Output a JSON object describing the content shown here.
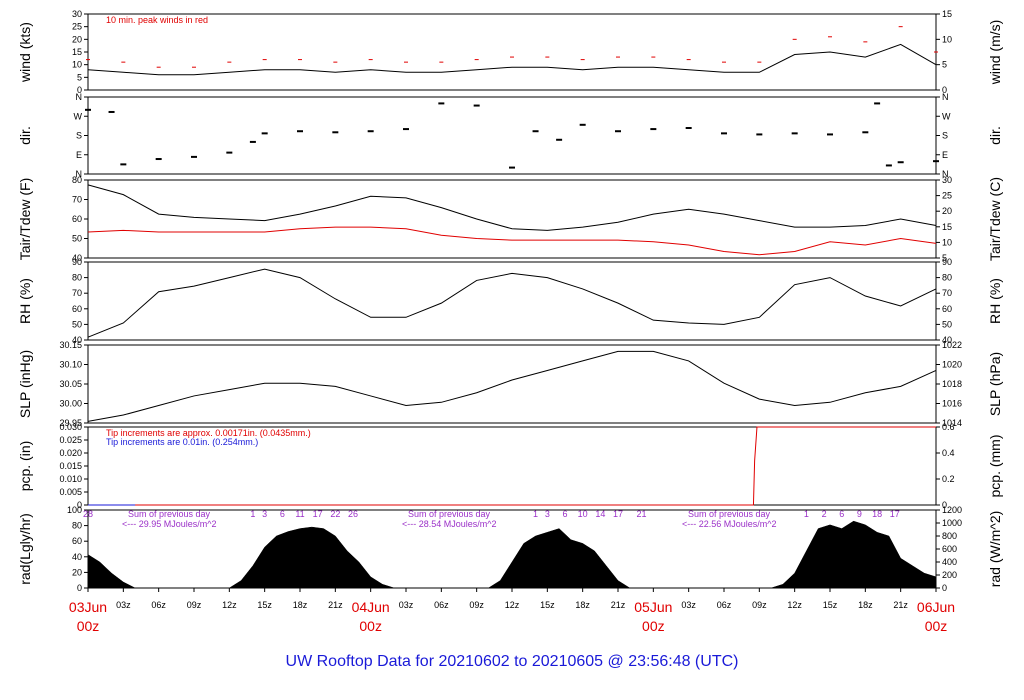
{
  "chart_data": {
    "type": "line",
    "title": "UW Rooftop Data for 20210602  to  20210605 @ 23:56:48  (UTC)",
    "x_ticks": [
      "03Jun",
      "03z",
      "06z",
      "09z",
      "12z",
      "15z",
      "18z",
      "21z",
      "04Jun",
      "03z",
      "06z",
      "09z",
      "12z",
      "15z",
      "18z",
      "21z",
      "05Jun",
      "03z",
      "06z",
      "09z",
      "12z",
      "15z",
      "18z",
      "21z",
      "06Jun"
    ],
    "day_labels": [
      {
        "date": "03Jun",
        "time": "00z"
      },
      {
        "date": "04Jun",
        "time": "00z"
      },
      {
        "date": "05Jun",
        "time": "00z"
      },
      {
        "date": "06Jun",
        "time": "00z"
      }
    ],
    "x_hours_ref": [
      0,
      3,
      6,
      9,
      12,
      15,
      18,
      21,
      24,
      27,
      30,
      33,
      36,
      39,
      42,
      45,
      48,
      51,
      54,
      57,
      60,
      63,
      66,
      69,
      72
    ],
    "panels": [
      {
        "id": "wind",
        "ylabel_left": "wind (kts)",
        "ylabel_right": "wind (m/s)",
        "left_ticks": [
          "30",
          "25",
          "20",
          "15",
          "10",
          "5",
          "0"
        ],
        "right_ticks": [
          "15",
          "10",
          "5",
          "0"
        ],
        "ylim": [
          0,
          30
        ],
        "annotation": "10 min. peak winds in red",
        "series": [
          {
            "name": "wind",
            "color": "#000000",
            "x": [
              0,
              3,
              6,
              9,
              12,
              15,
              18,
              21,
              24,
              27,
              30,
              33,
              36,
              39,
              42,
              45,
              48,
              51,
              54,
              57,
              60,
              63,
              66,
              69,
              72
            ],
            "y": [
              8,
              7,
              6,
              6,
              7,
              8,
              8,
              7,
              8,
              7,
              7,
              8,
              9,
              9,
              8,
              9,
              9,
              8,
              7,
              7,
              14,
              15,
              13,
              18,
              10
            ]
          },
          {
            "name": "peak",
            "color": "#e00000",
            "x": [
              0,
              3,
              6,
              9,
              12,
              15,
              18,
              21,
              24,
              27,
              30,
              33,
              36,
              39,
              42,
              45,
              48,
              51,
              54,
              57,
              60,
              63,
              66,
              69,
              72
            ],
            "y": [
              12,
              11,
              9,
              9,
              11,
              12,
              12,
              11,
              12,
              11,
              11,
              12,
              13,
              13,
              12,
              13,
              13,
              12,
              11,
              11,
              20,
              21,
              19,
              25,
              15
            ]
          }
        ]
      },
      {
        "id": "dir",
        "ylabel_left": "dir.",
        "ylabel_right": "dir.",
        "left_ticks": [
          "N",
          "W",
          "S",
          "E",
          "N"
        ],
        "right_ticks": [
          "N",
          "W",
          "S",
          "E",
          "N"
        ],
        "ylim": [
          0,
          360
        ],
        "series": [
          {
            "name": "direction",
            "color": "#000000",
            "x": [
              0,
              2,
              3,
              6,
              9,
              12,
              14,
              15,
              18,
              21,
              24,
              27,
              30,
              33,
              36,
              38,
              40,
              42,
              45,
              48,
              51,
              54,
              57,
              60,
              63,
              66,
              67,
              68,
              69,
              72
            ],
            "y": [
              300,
              290,
              45,
              70,
              80,
              100,
              150,
              190,
              200,
              195,
              200,
              210,
              330,
              320,
              30,
              200,
              160,
              230,
              200,
              210,
              215,
              190,
              185,
              190,
              185,
              195,
              330,
              40,
              55,
              60
            ]
          }
        ]
      },
      {
        "id": "temp",
        "ylabel_left": "Tair/Tdew (F)",
        "ylabel_right": "Tair/Tdew (C)",
        "left_ticks": [
          "80",
          "70",
          "60",
          "50",
          "40"
        ],
        "right_ticks": [
          "30",
          "25",
          "20",
          "15",
          "10",
          "5"
        ],
        "ylim": [
          38,
          86
        ],
        "series": [
          {
            "name": "Tair",
            "color": "#000000",
            "x": [
              0,
              3,
              6,
              9,
              12,
              15,
              18,
              21,
              24,
              27,
              30,
              33,
              36,
              39,
              42,
              45,
              48,
              51,
              54,
              57,
              60,
              63,
              66,
              69,
              72
            ],
            "y": [
              83,
              77,
              65,
              63,
              62,
              61,
              65,
              70,
              76,
              75,
              69,
              62,
              56,
              55,
              57,
              60,
              65,
              68,
              65,
              61,
              57,
              57,
              58,
              62,
              58
            ]
          },
          {
            "name": "Tdew",
            "color": "#e00000",
            "x": [
              0,
              3,
              6,
              9,
              12,
              15,
              18,
              21,
              24,
              27,
              30,
              33,
              36,
              39,
              42,
              45,
              48,
              51,
              54,
              57,
              60,
              63,
              66,
              69,
              72
            ],
            "y": [
              54,
              55,
              54,
              54,
              54,
              54,
              56,
              57,
              57,
              56,
              52,
              50,
              49,
              49,
              49,
              49,
              48,
              46,
              42,
              40,
              42,
              48,
              46,
              50,
              47
            ]
          }
        ]
      },
      {
        "id": "rh",
        "ylabel_left": "RH (%)",
        "ylabel_right": "RH (%)",
        "left_ticks": [
          "90",
          "80",
          "70",
          "60",
          "50",
          "40"
        ],
        "right_ticks": [
          "90",
          "80",
          "70",
          "60",
          "50",
          "40"
        ],
        "ylim": [
          36,
          91
        ],
        "series": [
          {
            "name": "RH",
            "color": "#000000",
            "x": [
              0,
              3,
              6,
              9,
              12,
              15,
              18,
              21,
              24,
              27,
              30,
              33,
              36,
              39,
              42,
              45,
              48,
              51,
              54,
              57,
              60,
              63,
              66,
              69,
              72
            ],
            "y": [
              38,
              48,
              70,
              74,
              80,
              86,
              80,
              65,
              52,
              52,
              62,
              78,
              83,
              80,
              72,
              62,
              50,
              48,
              47,
              52,
              75,
              80,
              67,
              60,
              72
            ]
          }
        ]
      },
      {
        "id": "slp",
        "ylabel_left": "SLP (inHg)",
        "ylabel_right": "SLP (hPa)",
        "left_ticks": [
          "30.15",
          "30.10",
          "30.05",
          "30.00",
          "29.95"
        ],
        "right_ticks": [
          "1022",
          "1020",
          "1018",
          "1016",
          "1014"
        ],
        "ylim": [
          29.935,
          30.18
        ],
        "series": [
          {
            "name": "SLP",
            "color": "#000000",
            "x": [
              0,
              3,
              6,
              9,
              12,
              15,
              18,
              21,
              24,
              27,
              30,
              33,
              36,
              39,
              42,
              45,
              48,
              51,
              54,
              57,
              60,
              63,
              66,
              69,
              72
            ],
            "y": [
              29.94,
              29.96,
              29.99,
              30.02,
              30.04,
              30.06,
              30.06,
              30.05,
              30.02,
              29.99,
              30.0,
              30.03,
              30.07,
              30.1,
              30.13,
              30.16,
              30.16,
              30.13,
              30.06,
              30.01,
              29.99,
              30.0,
              30.03,
              30.05,
              30.1
            ]
          }
        ]
      },
      {
        "id": "pcp",
        "ylabel_left": "pcp. (in)",
        "ylabel_right": "pcp. (mm)",
        "left_ticks": [
          "0.030",
          "0.025",
          "0.020",
          "0.015",
          "0.010",
          "0.005",
          "0"
        ],
        "right_ticks": [
          "0.6",
          "0.4",
          "0.2",
          "0"
        ],
        "ylim": [
          0,
          0.03
        ],
        "notes": [
          {
            "text": "Tip increments are approx. 0.00171in. (0.0435mm.)",
            "color": "#e00000"
          },
          {
            "text": "Tip increments are 0.01in. (0.254mm.)",
            "color": "#1a1ad8"
          }
        ],
        "series": [
          {
            "name": "pcp red",
            "color": "#e00000",
            "x": [
              0,
              56.5,
              56.6,
              56.8,
              72
            ],
            "y": [
              0,
              0,
              0.017,
              0.03,
              0.03
            ]
          },
          {
            "name": "pcp blue",
            "color": "#1a1ad8",
            "x": [
              0,
              4
            ],
            "y": [
              0,
              0
            ]
          }
        ]
      },
      {
        "id": "rad",
        "ylabel_left": "rad(Lgly/hr)",
        "ylabel_right": "rad (W/m^2)",
        "left_ticks": [
          "100",
          "80",
          "60",
          "40",
          "20",
          "0"
        ],
        "right_ticks": [
          "1200",
          "1000",
          "800",
          "600",
          "400",
          "200",
          "0"
        ],
        "ylim": [
          0,
          105
        ],
        "sums": [
          "Sum of previous day",
          "Sum of previous day",
          "Sum of previous day"
        ],
        "sum_values": [
          "<--- 29.95 MJoules/m^2",
          "<--- 28.54 MJoules/m^2",
          "<--- 22.56 MJoules/m^2"
        ],
        "hour_marks": [
          "28",
          "1",
          "3",
          "6",
          "11",
          "17",
          "22",
          "26",
          "1",
          "3",
          "6",
          "10",
          "14",
          "17",
          "21",
          "1",
          "2",
          "6",
          "9",
          "18",
          "17"
        ],
        "series": [
          {
            "name": "rad",
            "color": "#000000",
            "x": [
              0,
              1,
              2,
              3,
              4,
              12,
              13,
              14,
              15,
              16,
              17,
              18,
              19,
              20,
              21,
              22,
              23,
              24,
              25,
              26,
              34,
              35,
              36,
              37,
              38,
              39,
              40,
              41,
              42,
              43,
              44,
              45,
              46,
              58,
              59,
              60,
              61,
              62,
              63,
              64,
              65,
              66,
              67,
              68,
              69,
              70,
              71,
              72
            ],
            "y": [
              45,
              35,
              20,
              8,
              0,
              0,
              10,
              30,
              55,
              70,
              76,
              80,
              82,
              80,
              70,
              50,
              35,
              15,
              5,
              0,
              0,
              10,
              35,
              60,
              70,
              75,
              80,
              65,
              60,
              50,
              30,
              10,
              0,
              0,
              5,
              20,
              50,
              80,
              85,
              80,
              90,
              85,
              75,
              70,
              40,
              30,
              20,
              15
            ]
          }
        ]
      }
    ]
  }
}
